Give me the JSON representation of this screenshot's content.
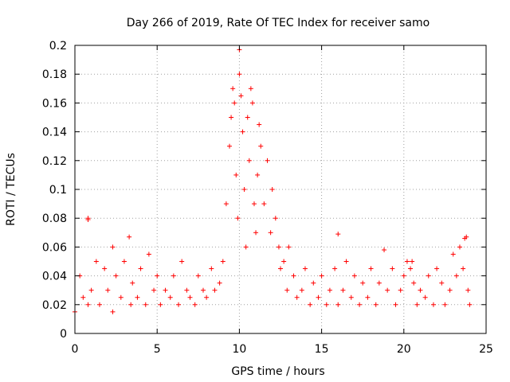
{
  "chart_data": {
    "type": "scatter",
    "title": "Day 266 of 2019, Rate Of TEC Index for receiver samo",
    "xlabel": "GPS time / hours",
    "ylabel": "ROTI / TECUs",
    "xlim": [
      0,
      25
    ],
    "ylim": [
      0,
      0.2
    ],
    "xticks": [
      0,
      5,
      10,
      15,
      20,
      25
    ],
    "xtick_labels": [
      "0",
      "5",
      "10",
      "15",
      "20",
      "25"
    ],
    "yticks": [
      0,
      0.02,
      0.04,
      0.06,
      0.08,
      0.1,
      0.12,
      0.14,
      0.16,
      0.18,
      0.2
    ],
    "ytick_labels": [
      "0",
      "0.02",
      "0.04",
      "0.06",
      "0.08",
      "0.1",
      "0.12",
      "0.14",
      "0.16",
      "0.18",
      "0.2"
    ],
    "grid": true,
    "marker": "+",
    "color": "#ff0000",
    "series": [
      {
        "name": "ROTI",
        "x": [
          0.0,
          0.3,
          0.5,
          0.8,
          0.8,
          0.8,
          1.0,
          1.3,
          1.5,
          1.8,
          2.0,
          2.3,
          2.3,
          2.5,
          2.8,
          3.0,
          3.3,
          3.4,
          3.5,
          3.8,
          4.0,
          4.3,
          4.5,
          4.8,
          5.0,
          5.2,
          5.5,
          5.8,
          6.0,
          6.3,
          6.5,
          6.8,
          7.0,
          7.3,
          7.5,
          7.8,
          8.0,
          8.3,
          8.5,
          8.8,
          9.0,
          9.2,
          9.4,
          9.5,
          9.6,
          9.7,
          9.8,
          9.9,
          10.0,
          10.0,
          10.1,
          10.2,
          10.3,
          10.4,
          10.5,
          10.6,
          10.7,
          10.8,
          10.9,
          11.0,
          11.1,
          11.2,
          11.3,
          11.5,
          11.7,
          11.9,
          12.0,
          12.2,
          12.4,
          12.5,
          12.7,
          12.9,
          13.0,
          13.3,
          13.5,
          13.8,
          14.0,
          14.3,
          14.5,
          14.8,
          15.0,
          15.3,
          15.5,
          15.8,
          16.0,
          16.0,
          16.3,
          16.5,
          16.8,
          17.0,
          17.3,
          17.5,
          17.8,
          18.0,
          18.3,
          18.5,
          18.8,
          19.0,
          19.3,
          19.5,
          19.8,
          20.0,
          20.2,
          20.4,
          20.5,
          20.6,
          20.8,
          21.0,
          21.3,
          21.5,
          21.8,
          22.0,
          22.3,
          22.5,
          22.8,
          23.0,
          23.2,
          23.4,
          23.6,
          23.7,
          23.8,
          23.9,
          24.0
        ],
        "y": [
          0.015,
          0.04,
          0.025,
          0.08,
          0.079,
          0.02,
          0.03,
          0.05,
          0.02,
          0.045,
          0.03,
          0.06,
          0.015,
          0.04,
          0.025,
          0.05,
          0.067,
          0.02,
          0.035,
          0.025,
          0.045,
          0.02,
          0.055,
          0.03,
          0.04,
          0.02,
          0.03,
          0.025,
          0.04,
          0.02,
          0.05,
          0.03,
          0.025,
          0.02,
          0.04,
          0.03,
          0.025,
          0.045,
          0.03,
          0.035,
          0.05,
          0.09,
          0.13,
          0.15,
          0.17,
          0.16,
          0.11,
          0.08,
          0.197,
          0.18,
          0.165,
          0.14,
          0.1,
          0.06,
          0.15,
          0.12,
          0.17,
          0.16,
          0.09,
          0.07,
          0.11,
          0.145,
          0.13,
          0.09,
          0.12,
          0.07,
          0.1,
          0.08,
          0.06,
          0.045,
          0.05,
          0.03,
          0.06,
          0.04,
          0.025,
          0.03,
          0.045,
          0.02,
          0.035,
          0.025,
          0.04,
          0.02,
          0.03,
          0.045,
          0.069,
          0.02,
          0.03,
          0.05,
          0.025,
          0.04,
          0.02,
          0.035,
          0.025,
          0.045,
          0.02,
          0.035,
          0.058,
          0.03,
          0.045,
          0.02,
          0.03,
          0.04,
          0.05,
          0.045,
          0.05,
          0.035,
          0.02,
          0.03,
          0.025,
          0.04,
          0.02,
          0.045,
          0.035,
          0.02,
          0.03,
          0.055,
          0.04,
          0.06,
          0.045,
          0.066,
          0.067,
          0.03,
          0.02
        ]
      }
    ]
  }
}
